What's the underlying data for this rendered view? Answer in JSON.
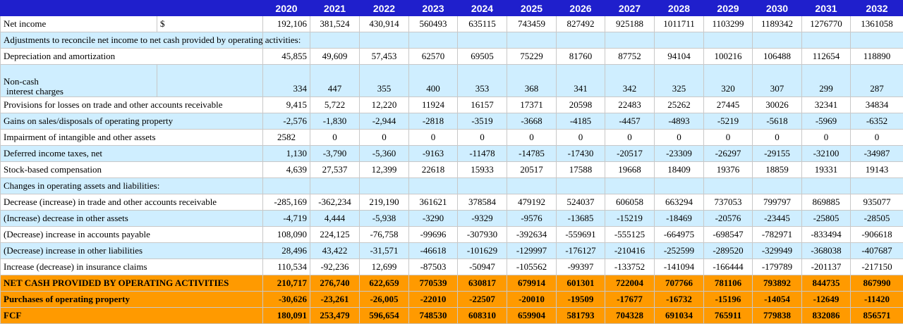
{
  "years": [
    "2020",
    "2021",
    "2022",
    "2023",
    "2024",
    "2025",
    "2026",
    "2027",
    "2028",
    "2029",
    "2030",
    "2031",
    "2032"
  ],
  "rows": [
    {
      "label": "Net income",
      "currency": "$",
      "values": [
        "192,106",
        "381,524",
        "430,914",
        "560493",
        "635115",
        "743459",
        "827492",
        "925188",
        "1011711",
        "1103299",
        "1189342",
        "1276770",
        "1361058"
      ]
    },
    {
      "label": "Adjustments to reconcile net income to net cash provided by operating activities:"
    },
    {
      "label": "Depreciation and amortization",
      "values": [
        "45,855",
        "49,609",
        "57,453",
        "62570",
        "69505",
        "75229",
        "81760",
        "87752",
        "94104",
        "100216",
        "106488",
        "112654",
        "118890"
      ]
    },
    {
      "label_line1": "Non-cash",
      "label_line2": "interest charges",
      "values": [
        "334",
        "447",
        "355",
        "400",
        "353",
        "368",
        "341",
        "342",
        "325",
        "320",
        "307",
        "299",
        "287"
      ]
    },
    {
      "label": "Provisions for losses on trade and other accounts receivable",
      "values": [
        "9,415",
        "5,722",
        "12,220",
        "11924",
        "16157",
        "17371",
        "20598",
        "22483",
        "25262",
        "27445",
        "30026",
        "32341",
        "34834"
      ]
    },
    {
      "label": "Gains on sales/disposals of operating property",
      "values": [
        "-2,576",
        "-1,830",
        "-2,944",
        "-2818",
        "-3519",
        "-3668",
        "-4185",
        "-4457",
        "-4893",
        "-5219",
        "-5618",
        "-5969",
        "-6352"
      ]
    },
    {
      "label": "Impairment of intangible and other assets",
      "values": [
        "2582",
        "0",
        "0",
        "0",
        "0",
        "0",
        "0",
        "0",
        "0",
        "0",
        "0",
        "0",
        "0"
      ]
    },
    {
      "label": "Deferred income taxes, net",
      "values": [
        "1,130",
        "-3,790",
        "-5,360",
        "-9163",
        "-11478",
        "-14785",
        "-17430",
        "-20517",
        "-23309",
        "-26297",
        "-29155",
        "-32100",
        "-34987"
      ]
    },
    {
      "label": "Stock-based compensation",
      "values": [
        "4,639",
        "27,537",
        "12,399",
        "22618",
        "15933",
        "20517",
        "17588",
        "19668",
        "18409",
        "19376",
        "18859",
        "19331",
        "19143"
      ]
    },
    {
      "label": "Changes in operating assets and liabilities:"
    },
    {
      "label": "Decrease (increase) in trade and other accounts receivable",
      "values": [
        "-285,169",
        "-362,234",
        "219,190",
        "361621",
        "378584",
        "479192",
        "524037",
        "606058",
        "663294",
        "737053",
        "799797",
        "869885",
        "935077"
      ]
    },
    {
      "label": "(Increase) decrease in other assets",
      "values": [
        "-4,719",
        "4,444",
        "-5,938",
        "-3290",
        "-9329",
        "-9576",
        "-13685",
        "-15219",
        "-18469",
        "-20576",
        "-23445",
        "-25805",
        "-28505"
      ]
    },
    {
      "label": "(Decrease) increase in accounts payable",
      "values": [
        "108,090",
        "224,125",
        "-76,758",
        "-99696",
        "-307930",
        "-392634",
        "-559691",
        "-555125",
        "-664975",
        "-698547",
        "-782971",
        "-833494",
        "-906618"
      ]
    },
    {
      "label": "(Decrease) increase in other liabilities",
      "values": [
        "28,496",
        "43,422",
        "-31,571",
        "-46618",
        "-101629",
        "-129997",
        "-176127",
        "-210416",
        "-252599",
        "-289520",
        "-329949",
        "-368038",
        "-407687"
      ]
    },
    {
      "label": "Increase (decrease) in insurance claims",
      "values": [
        "110,534",
        "-92,236",
        "12,699",
        "-87503",
        "-50947",
        "-105562",
        "-99397",
        "-133752",
        "-141094",
        "-166444",
        "-179789",
        "-201137",
        "-217150"
      ]
    },
    {
      "label": "NET CASH PROVIDED BY OPERATING ACTIVITIES",
      "values": [
        "210,717",
        "276,740",
        "622,659",
        "770539",
        "630817",
        "679914",
        "601301",
        "722004",
        "707766",
        "781106",
        "793892",
        "844735",
        "867990"
      ]
    },
    {
      "label": "Purchases of operating property",
      "values": [
        "-30,626",
        "-23,261",
        "-26,005",
        "-22010",
        "-22507",
        "-20010",
        "-19509",
        "-17677",
        "-16732",
        "-15196",
        "-14054",
        "-12649",
        "-11420"
      ]
    },
    {
      "label": "FCF",
      "values": [
        "180,091",
        "253,479",
        "596,654",
        "748530",
        "608310",
        "659904",
        "581793",
        "704328",
        "691034",
        "765911",
        "779838",
        "832086",
        "856571"
      ]
    }
  ]
}
